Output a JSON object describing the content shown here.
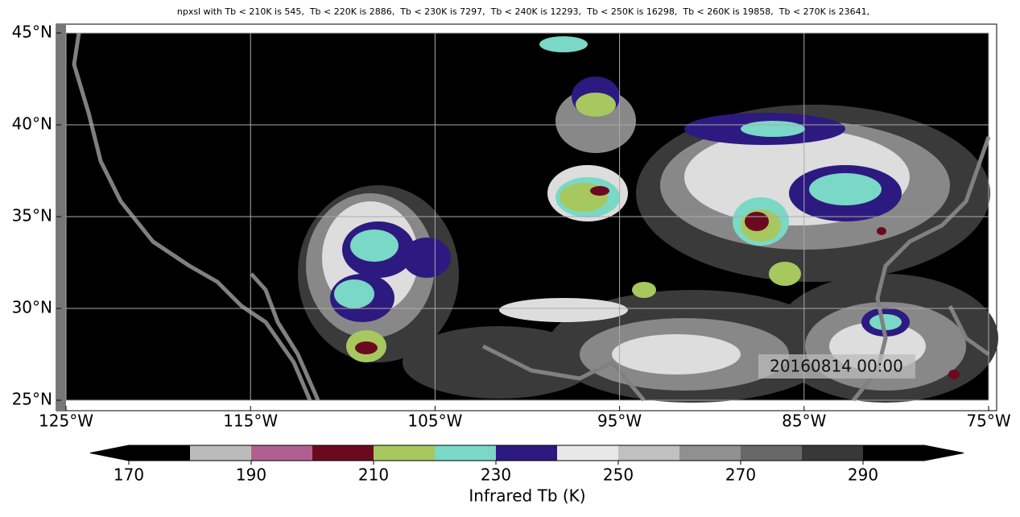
{
  "title": "npxsl with Tb < 210K is 545,  Tb < 220K is 2886,  Tb < 230K is 7297,  Tb < 240K is 12293,  Tb < 250K is 16298,  Tb < 260K is 19858,  Tb < 270K is 23641,",
  "timestamp": "20160814 00:00",
  "map": {
    "lon_ticks": [
      "125°W",
      "115°W",
      "105°W",
      "95°W",
      "85°W",
      "75°W"
    ],
    "lat_ticks": [
      "45°N",
      "40°N",
      "35°N",
      "30°N",
      "25°N"
    ]
  },
  "colorbar": {
    "label": "Infrared Tb (K)",
    "levels": [
      170,
      180,
      190,
      200,
      210,
      220,
      230,
      240,
      250,
      260,
      270,
      280,
      290,
      300
    ],
    "colors": [
      "#000000",
      "#bbbbbb",
      "#b06090",
      "#6b0a1e",
      "#a6c85e",
      "#7ad8c6",
      "#2d1a80",
      "#e8e8e8",
      "#c0c0c0",
      "#909090",
      "#686868",
      "#383838",
      "#000000"
    ],
    "ticks": [
      170,
      190,
      210,
      230,
      250,
      270,
      290
    ]
  }
}
